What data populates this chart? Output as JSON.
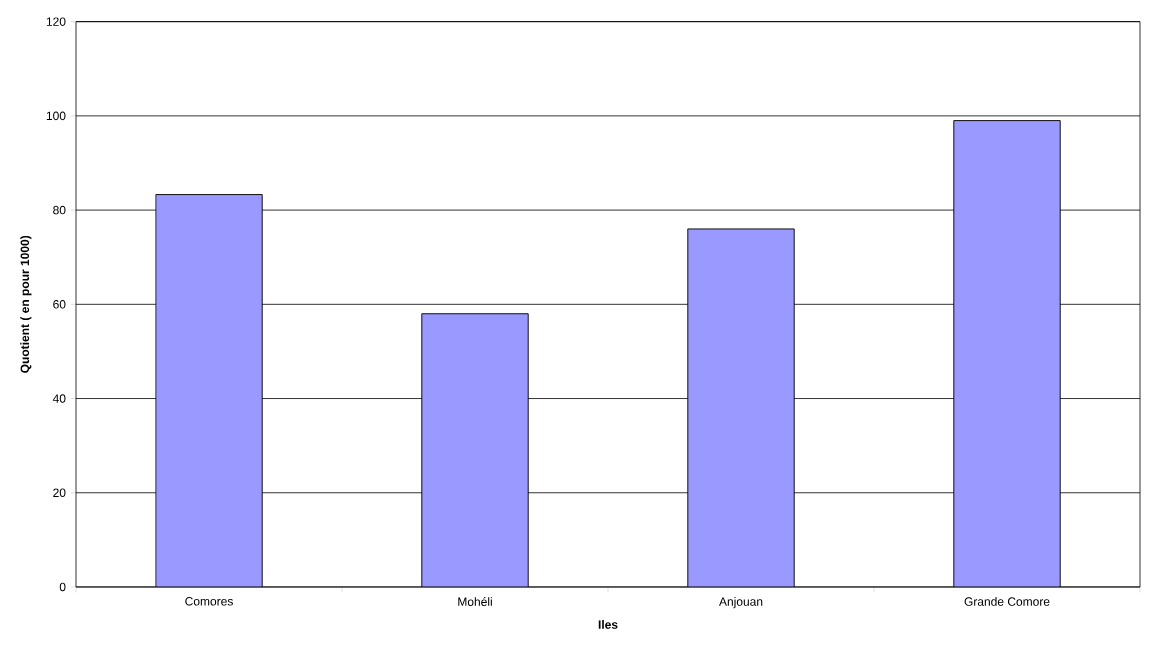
{
  "chart_data": {
    "type": "bar",
    "xlabel": "Iles",
    "ylabel": "Quotient ( en pour 1000)",
    "categories": [
      "Comores",
      "Mohéli",
      "Anjouan",
      "Grande Comore"
    ],
    "values": [
      83.3,
      58,
      76,
      99
    ],
    "color": "#9999ff",
    "ylim": [
      0,
      120
    ],
    "yticks": [
      0,
      20,
      40,
      60,
      80,
      100,
      120
    ],
    "grid": "y"
  }
}
